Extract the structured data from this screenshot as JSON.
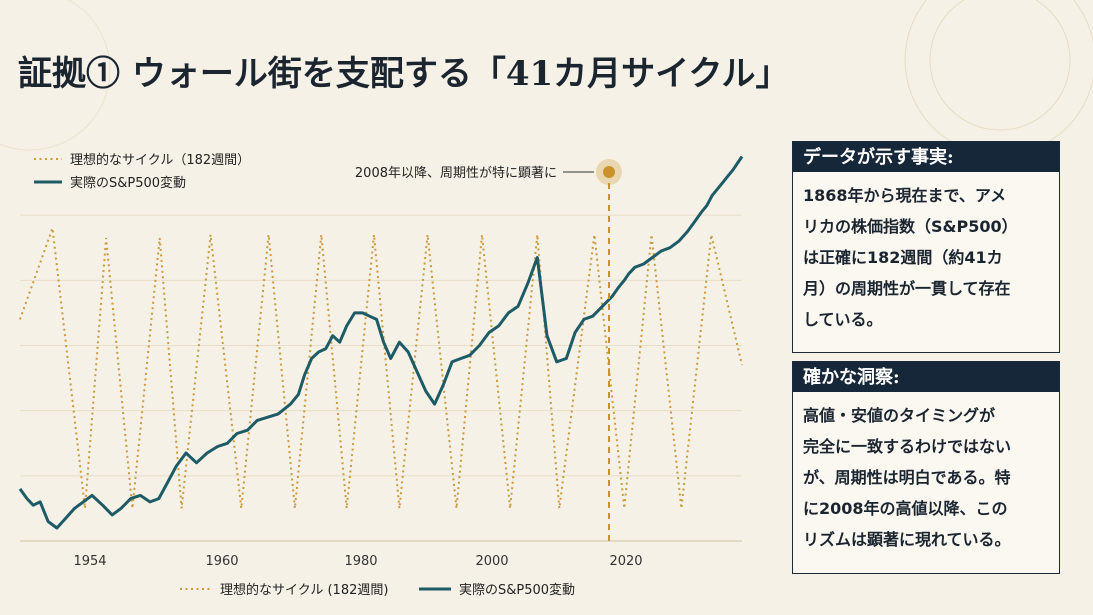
{
  "title": "証拠① ウォール街を支配する「41カ月サイクル」",
  "panel_facts": {
    "heading": "データが示す事実:",
    "lines": [
      "1868年から現在まで、アメ",
      "リカの株価指数（S&P500）",
      "は正確に182週間（約41カ",
      "月）の周期性が一貫して存在",
      "している。"
    ]
  },
  "panel_insight": {
    "heading": "確かな洞察:",
    "lines": [
      "高値・安値のタイミングが",
      "完全に一致するわけではない",
      "が、周期性は明白である。特",
      "に2008年の高値以降、この",
      "リズムは顕著に現れている。"
    ]
  },
  "colors": {
    "ideal": "#c99a3e",
    "actual": "#1d5b66",
    "marker": "#c9922a",
    "navy": "#17273a"
  },
  "chart_data": {
    "type": "line",
    "x_tick_labels": [
      "1954",
      "1960",
      "1980",
      "2000",
      "2020"
    ],
    "legend_top": [
      "理想的なサイクル（182週間）",
      "実際のS&P500変動"
    ],
    "legend_bottom": [
      "理想的なサイクル (182週間)",
      "実際のS&P500変動"
    ],
    "annotation": "2008年以降、周期性が特に顕著に",
    "ideal_cycle": {
      "name": "理想的なサイクル（182週間）",
      "x": [
        1948.8,
        1952.5,
        1956.2,
        1958.6,
        1961.6,
        1964.7,
        1967.2,
        1970.5,
        1974.0,
        1977.1,
        1980.1,
        1983.1,
        1986.0,
        1989.1,
        1992.0,
        1995.2,
        1998.5,
        2001.4,
        2004.6,
        2007.7,
        2010.2,
        2014.2,
        2017.6,
        2020.7,
        2024.1,
        2027.5,
        2031.0
      ],
      "y": [
        0.68,
        0.96,
        0.1,
        0.93,
        0.1,
        0.93,
        0.1,
        0.94,
        0.1,
        0.94,
        0.1,
        0.94,
        0.1,
        0.94,
        0.1,
        0.94,
        0.1,
        0.94,
        0.1,
        0.94,
        0.1,
        0.94,
        0.1,
        0.94,
        0.1,
        0.94,
        0.54
      ]
    },
    "actual": {
      "name": "実際のS&P500変動",
      "x": [
        1948.8,
        1949.6,
        1950.3,
        1951.1,
        1952.0,
        1953.0,
        1954.0,
        1955.0,
        1956.0,
        1957.0,
        1958.2,
        1959.3,
        1960.3,
        1961.4,
        1962.5,
        1963.6,
        1964.6,
        1965.6,
        1966.6,
        1967.7,
        1968.9,
        1970.1,
        1971.3,
        1972.4,
        1973.5,
        1974.7,
        1975.8,
        1977.0,
        1978.2,
        1979.6,
        1980.5,
        1981.2,
        1982.0,
        1982.8,
        1983.6,
        1984.4,
        1985.2,
        1986.0,
        1986.9,
        1987.8,
        1988.6,
        1989.4,
        1990.2,
        1991.0,
        1992.0,
        1993.0,
        1994.0,
        1995.0,
        1996.0,
        1997.0,
        1998.0,
        1999.0,
        2000.0,
        2001.1,
        2002.2,
        2003.3,
        2004.4,
        2005.5,
        2006.6,
        2007.7,
        2008.8,
        2009.9,
        2011.0,
        2012.0,
        2013.0,
        2014.0,
        2015.1,
        2016.2,
        2017.0,
        2017.6,
        2018.1,
        2018.8,
        2019.8,
        2020.8,
        2021.8,
        2022.8,
        2023.8,
        2024.8,
        2025.6,
        2026.4,
        2027.0,
        2027.6,
        2028.2,
        2028.8,
        2029.4,
        2030.0,
        2030.5,
        2031.0
      ],
      "y": [
        0.16,
        0.13,
        0.11,
        0.12,
        0.06,
        0.04,
        0.07,
        0.1,
        0.12,
        0.14,
        0.11,
        0.08,
        0.1,
        0.13,
        0.14,
        0.12,
        0.13,
        0.18,
        0.23,
        0.27,
        0.24,
        0.27,
        0.29,
        0.3,
        0.33,
        0.34,
        0.37,
        0.38,
        0.39,
        0.42,
        0.45,
        0.51,
        0.56,
        0.58,
        0.59,
        0.63,
        0.61,
        0.66,
        0.7,
        0.7,
        0.69,
        0.68,
        0.61,
        0.56,
        0.61,
        0.58,
        0.52,
        0.46,
        0.42,
        0.48,
        0.55,
        0.56,
        0.57,
        0.6,
        0.64,
        0.66,
        0.7,
        0.72,
        0.79,
        0.87,
        0.63,
        0.55,
        0.56,
        0.64,
        0.68,
        0.69,
        0.72,
        0.75,
        0.78,
        0.8,
        0.82,
        0.84,
        0.85,
        0.87,
        0.89,
        0.9,
        0.92,
        0.95,
        0.98,
        1.01,
        1.03,
        1.06,
        1.08,
        1.1,
        1.12,
        1.14,
        1.16,
        1.18
      ]
    }
  }
}
